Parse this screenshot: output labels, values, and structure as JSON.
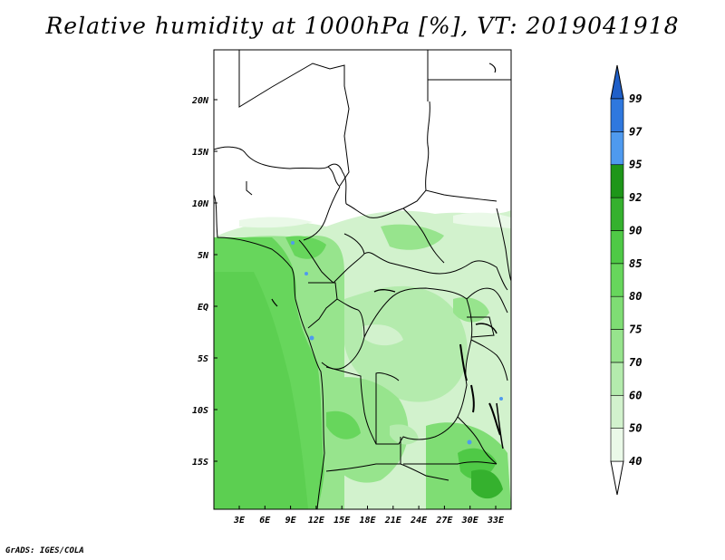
{
  "title": "Relative humidity at 1000hPa [%], VT: 2019041918",
  "credit": "GrADS: IGES/COLA",
  "axes": {
    "lat_ticks": [
      "20N",
      "15N",
      "10N",
      "5N",
      "EQ",
      "5S",
      "10S",
      "15S"
    ],
    "lon_ticks": [
      "3E",
      "6E",
      "9E",
      "12E",
      "15E",
      "18E",
      "21E",
      "24E",
      "27E",
      "30E",
      "33E"
    ]
  },
  "colorbar": {
    "levels": [
      "40",
      "50",
      "60",
      "70",
      "75",
      "80",
      "85",
      "90",
      "92",
      "95",
      "97",
      "99"
    ],
    "colors": {
      "below_40": "#ffffff",
      "40-50": "#eaf9e8",
      "50-60": "#d2f2cd",
      "60-70": "#b4ebad",
      "70-75": "#97e48d",
      "75-80": "#7fdd74",
      "80-85": "#67d65c",
      "85-90": "#4fc946",
      "90-92": "#35b12e",
      "92-95": "#1e9619",
      "95-97": "#4f9aef",
      "97-99": "#2f78de",
      "above_99": "#1f5fc8"
    }
  },
  "icons": {
    "map": "relative-humidity-map",
    "colorbar": "humidity-colorbar"
  }
}
